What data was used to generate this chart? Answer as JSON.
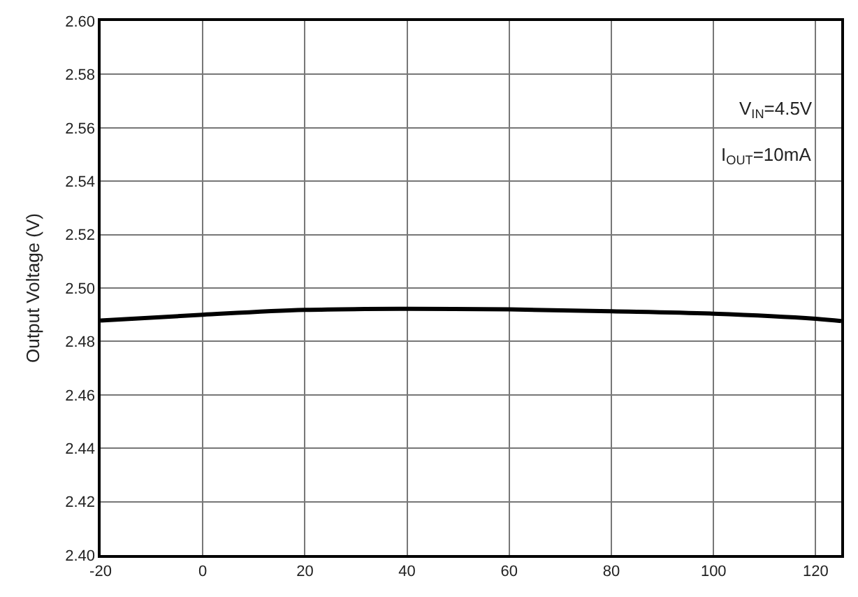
{
  "chart_data": {
    "type": "line",
    "ylabel": "Output Voltage (V)",
    "annotations": [
      "V$_{IN}$=4.5V",
      "I$_{OUT}$=10mA"
    ],
    "x": [
      -20,
      0,
      20,
      40,
      60,
      80,
      100,
      120,
      125
    ],
    "series": [
      {
        "color": "#000000",
        "values": [
          2.4878,
          2.49,
          2.4918,
          2.4922,
          2.492,
          2.4913,
          2.4904,
          2.4885,
          2.4876
        ]
      }
    ],
    "xlim": [
      -20,
      125
    ],
    "xticks": [
      -20,
      0,
      20,
      40,
      60,
      80,
      100,
      120
    ],
    "ylim": [
      2.4,
      2.6
    ],
    "yticks": [
      {
        "value": 2.4,
        "label": "2.40"
      },
      2.42,
      2.44,
      2.46,
      2.48,
      {
        "value": 2.5,
        "label": "2.50"
      },
      2.52,
      2.54,
      2.56,
      2.58,
      {
        "value": 2.6,
        "label": "2.60"
      }
    ],
    "grid": true,
    "marker": "none",
    "line_style": "solid"
  }
}
